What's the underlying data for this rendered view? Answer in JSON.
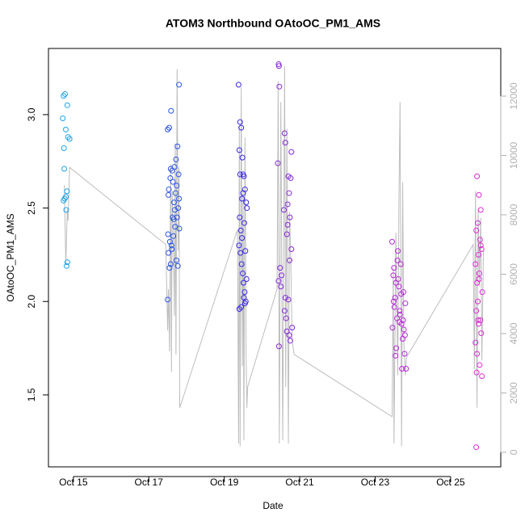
{
  "chart_data": {
    "type": "scatter",
    "title": "ATOM3 Northbound OAtoOC_PM1_AMS",
    "xlabel": "Date",
    "ylabel": "OAtoOC_PM1_AMS",
    "xlim": [
      14.34,
      26.33
    ],
    "xticks": [
      {
        "value": 15,
        "label": "Oct 15"
      },
      {
        "value": 17,
        "label": "Oct 17"
      },
      {
        "value": 19,
        "label": "Oct 19"
      },
      {
        "value": 21,
        "label": "Oct 21"
      },
      {
        "value": 23,
        "label": "Oct 23"
      },
      {
        "value": 25,
        "label": "Oct 25"
      }
    ],
    "ylim": [
      1.115,
      3.354
    ],
    "yticks": [
      1.5,
      {
        "value": 2,
        "label": "2.0"
      },
      2.5,
      {
        "value": 3,
        "label": "3.0"
      }
    ],
    "y2lim": [
      -490,
      13605
    ],
    "y2ticks": [
      0,
      2000,
      4000,
      6000,
      8000,
      10000,
      12000
    ],
    "series": [
      {
        "color": "#1fa3e6",
        "x": [
          14.74,
          14.78,
          14.84,
          14.72,
          14.8,
          14.86,
          14.9,
          14.75,
          14.76,
          14.83,
          14.8,
          14.77,
          14.74,
          14.81,
          14.84,
          14.82
        ],
        "values": [
          3.1,
          3.11,
          3.05,
          2.98,
          2.92,
          2.88,
          2.87,
          2.82,
          2.71,
          2.59,
          2.56,
          2.55,
          2.54,
          2.49,
          2.21,
          2.19
        ]
      },
      {
        "color": "#2b54e6",
        "x": [
          17.5,
          17.55,
          17.58,
          17.52,
          17.6,
          17.65,
          17.7,
          17.75,
          17.78,
          17.8,
          17.53,
          17.57,
          17.62,
          17.68,
          17.72,
          17.76,
          17.5,
          17.54,
          17.59,
          17.63,
          17.67,
          17.71,
          17.74,
          17.79,
          17.51,
          17.56,
          17.61,
          17.66,
          17.69,
          17.73,
          17.77,
          17.81,
          17.52,
          17.58,
          17.64,
          17.8
        ],
        "values": [
          2.01,
          2.18,
          2.2,
          2.26,
          2.3,
          2.35,
          2.4,
          2.45,
          2.5,
          2.55,
          2.6,
          2.66,
          2.7,
          2.72,
          2.76,
          2.83,
          2.92,
          2.93,
          3.02,
          2.45,
          2.53,
          2.58,
          2.62,
          2.68,
          2.36,
          2.32,
          2.28,
          2.44,
          2.49,
          2.22,
          2.19,
          2.39,
          2.57,
          2.71,
          2.64,
          3.16
        ]
      },
      {
        "color": "#3a2ae0",
        "x": [
          19.38,
          19.42,
          19.45,
          19.4,
          19.48,
          19.5,
          19.52,
          19.55,
          19.58,
          19.6,
          19.41,
          19.44,
          19.47,
          19.39,
          19.43,
          19.46,
          19.49,
          19.51,
          19.54,
          19.57,
          19.4,
          19.45,
          19.5,
          19.53,
          19.56,
          19.59,
          19.42,
          19.47,
          19.52,
          19.55
        ],
        "values": [
          3.16,
          2.96,
          2.93,
          2.81,
          2.77,
          2.68,
          2.67,
          2.6,
          2.53,
          2.5,
          2.45,
          2.38,
          2.34,
          2.3,
          2.26,
          2.2,
          2.15,
          2.1,
          2.05,
          2.0,
          1.96,
          1.97,
          2.58,
          2.42,
          2.27,
          2.12,
          2.68,
          2.55,
          2.02,
          1.99
        ]
      },
      {
        "color": "#8528d8",
        "x": [
          20.44,
          20.45,
          20.46,
          20.6,
          20.62,
          20.78,
          20.42,
          20.7,
          20.76,
          20.72,
          20.58,
          20.74,
          20.68,
          20.66,
          20.78,
          20.73,
          20.48,
          20.52,
          20.44,
          20.5,
          20.62,
          20.7,
          20.6,
          20.64,
          20.8,
          20.66,
          20.72,
          20.75,
          20.45,
          20.68
        ],
        "values": [
          3.27,
          3.26,
          3.15,
          2.9,
          2.85,
          2.8,
          2.74,
          2.67,
          2.66,
          2.58,
          2.49,
          2.45,
          2.41,
          2.36,
          2.28,
          2.22,
          2.18,
          2.14,
          2.11,
          2.08,
          2.02,
          2.01,
          1.95,
          1.91,
          1.86,
          1.84,
          1.82,
          1.79,
          1.76,
          2.52
        ]
      },
      {
        "color": "#b828d8",
        "x": [
          23.45,
          23.5,
          23.55,
          23.6,
          23.65,
          23.7,
          23.75,
          23.8,
          23.48,
          23.53,
          23.58,
          23.63,
          23.68,
          23.73,
          23.78,
          23.46,
          23.51,
          23.56,
          23.61,
          23.66,
          23.71,
          23.76,
          23.82,
          23.49,
          23.54,
          23.59,
          23.64,
          23.69,
          23.74,
          23.79
        ],
        "values": [
          2.32,
          2.18,
          2.1,
          2.27,
          1.95,
          1.88,
          2.05,
          1.99,
          2.14,
          2.02,
          1.91,
          2.08,
          2.2,
          1.8,
          1.72,
          1.86,
          1.97,
          1.75,
          2.12,
          1.93,
          1.64,
          1.85,
          1.64,
          2.0,
          1.71,
          2.22,
          1.89,
          2.04,
          1.9,
          1.82
        ]
      },
      {
        "color": "#e02ad8",
        "x": [
          25.7,
          25.75,
          25.8,
          25.72,
          25.68,
          25.78,
          25.82,
          25.74,
          25.66,
          25.76,
          25.7,
          25.84,
          25.72,
          25.68,
          25.79,
          25.74,
          25.81,
          25.66,
          25.7,
          25.77,
          25.69,
          25.83,
          25.73,
          25.75,
          25.68,
          25.8
        ],
        "values": [
          2.67,
          2.57,
          2.49,
          2.42,
          2.38,
          2.33,
          2.28,
          2.25,
          2.2,
          2.15,
          2.1,
          2.05,
          2.0,
          1.95,
          1.9,
          1.88,
          1.83,
          1.78,
          1.72,
          1.66,
          1.62,
          1.6,
          1.9,
          2.12,
          1.22,
          2.3
        ]
      },
      {
        "type": "line",
        "axis": "y2",
        "color": "#bdbdbd",
        "x": [
          14.76,
          14.8,
          14.84,
          14.86,
          14.9,
          17.45,
          17.5,
          17.52,
          17.55,
          17.58,
          17.6,
          17.62,
          17.65,
          17.68,
          17.7,
          17.72,
          17.75,
          17.78,
          17.8,
          17.82,
          19.35,
          19.38,
          19.4,
          19.42,
          19.45,
          19.48,
          19.5,
          19.52,
          19.55,
          19.58,
          19.6,
          19.62,
          20.4,
          20.43,
          20.46,
          20.5,
          20.55,
          20.6,
          20.63,
          20.66,
          20.7,
          20.73,
          20.76,
          20.8,
          20.85,
          23.45,
          23.48,
          23.5,
          23.55,
          23.6,
          23.63,
          23.66,
          23.7,
          23.73,
          23.76,
          23.8,
          23.83,
          25.6,
          25.63,
          25.66,
          25.7,
          25.73,
          25.76,
          25.8,
          25.83,
          25.87
        ],
        "values": [
          9000,
          6300,
          8200,
          7800,
          9600,
          7000,
          4100,
          5500,
          3400,
          9700,
          2700,
          8800,
          7200,
          4600,
          10400,
          3300,
          12900,
          6800,
          9600,
          1500,
          7500,
          300,
          11000,
          200,
          12300,
          2900,
          8800,
          400,
          10600,
          3200,
          1500,
          2200,
          5500,
          12500,
          300,
          11800,
          400,
          13000,
          2200,
          10900,
          300,
          8100,
          6700,
          3800,
          3300,
          1200,
          6200,
          300,
          7400,
          2600,
          8400,
          11800,
          200,
          9100,
          3700,
          2600,
          3200,
          7000,
          2800,
          8800,
          1500,
          8200,
          5600,
          7900,
          3100,
          6800
        ]
      }
    ]
  }
}
